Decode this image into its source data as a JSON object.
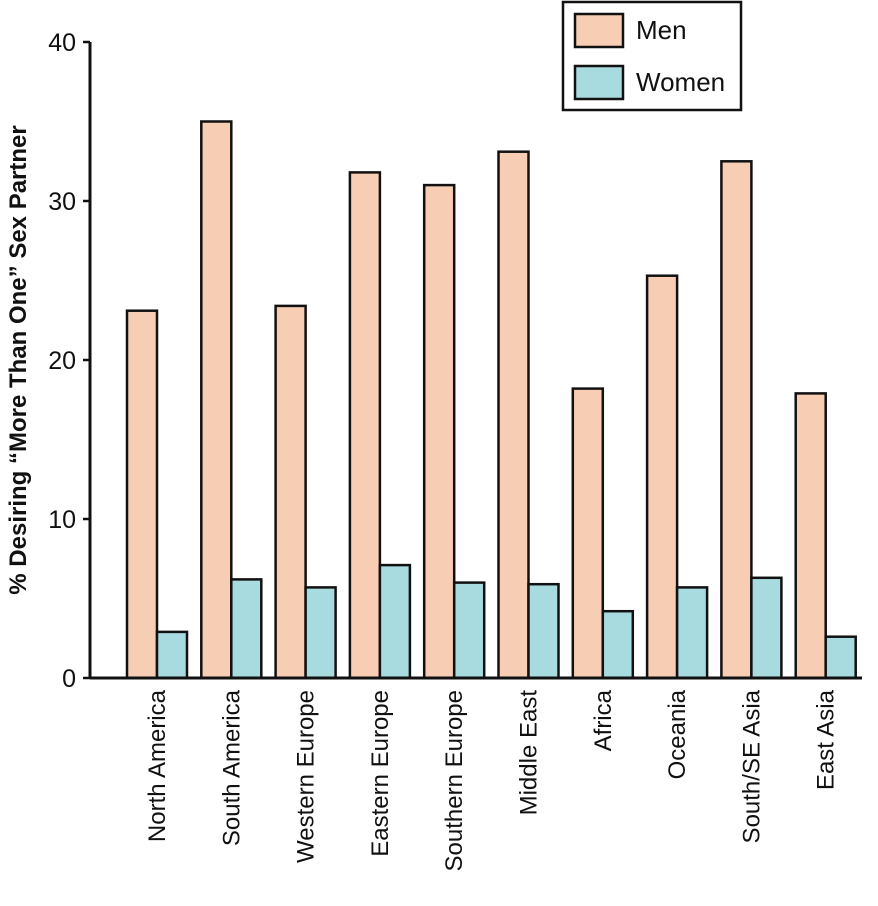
{
  "chart_data": {
    "type": "bar",
    "ylabel": "% Desiring “More Than One” Sex Partner",
    "xlabel": "",
    "ylim": [
      0,
      40
    ],
    "yticks": [
      0,
      10,
      20,
      30,
      40
    ],
    "legend_position": "top-right",
    "grid": false,
    "categories": [
      "North America",
      "South America",
      "Western Europe",
      "Eastern Europe",
      "Southern Europe",
      "Middle East",
      "Africa",
      "Oceania",
      "South/SE Asia",
      "East Asia"
    ],
    "series": [
      {
        "name": "Men",
        "color": "#f7cdb4",
        "values": [
          23.1,
          35.0,
          23.4,
          31.8,
          31.0,
          33.1,
          18.2,
          25.3,
          32.5,
          17.9
        ]
      },
      {
        "name": "Women",
        "color": "#a8dbe0",
        "values": [
          2.9,
          6.2,
          5.7,
          7.1,
          6.0,
          5.9,
          4.2,
          5.7,
          6.3,
          2.6
        ]
      }
    ]
  }
}
